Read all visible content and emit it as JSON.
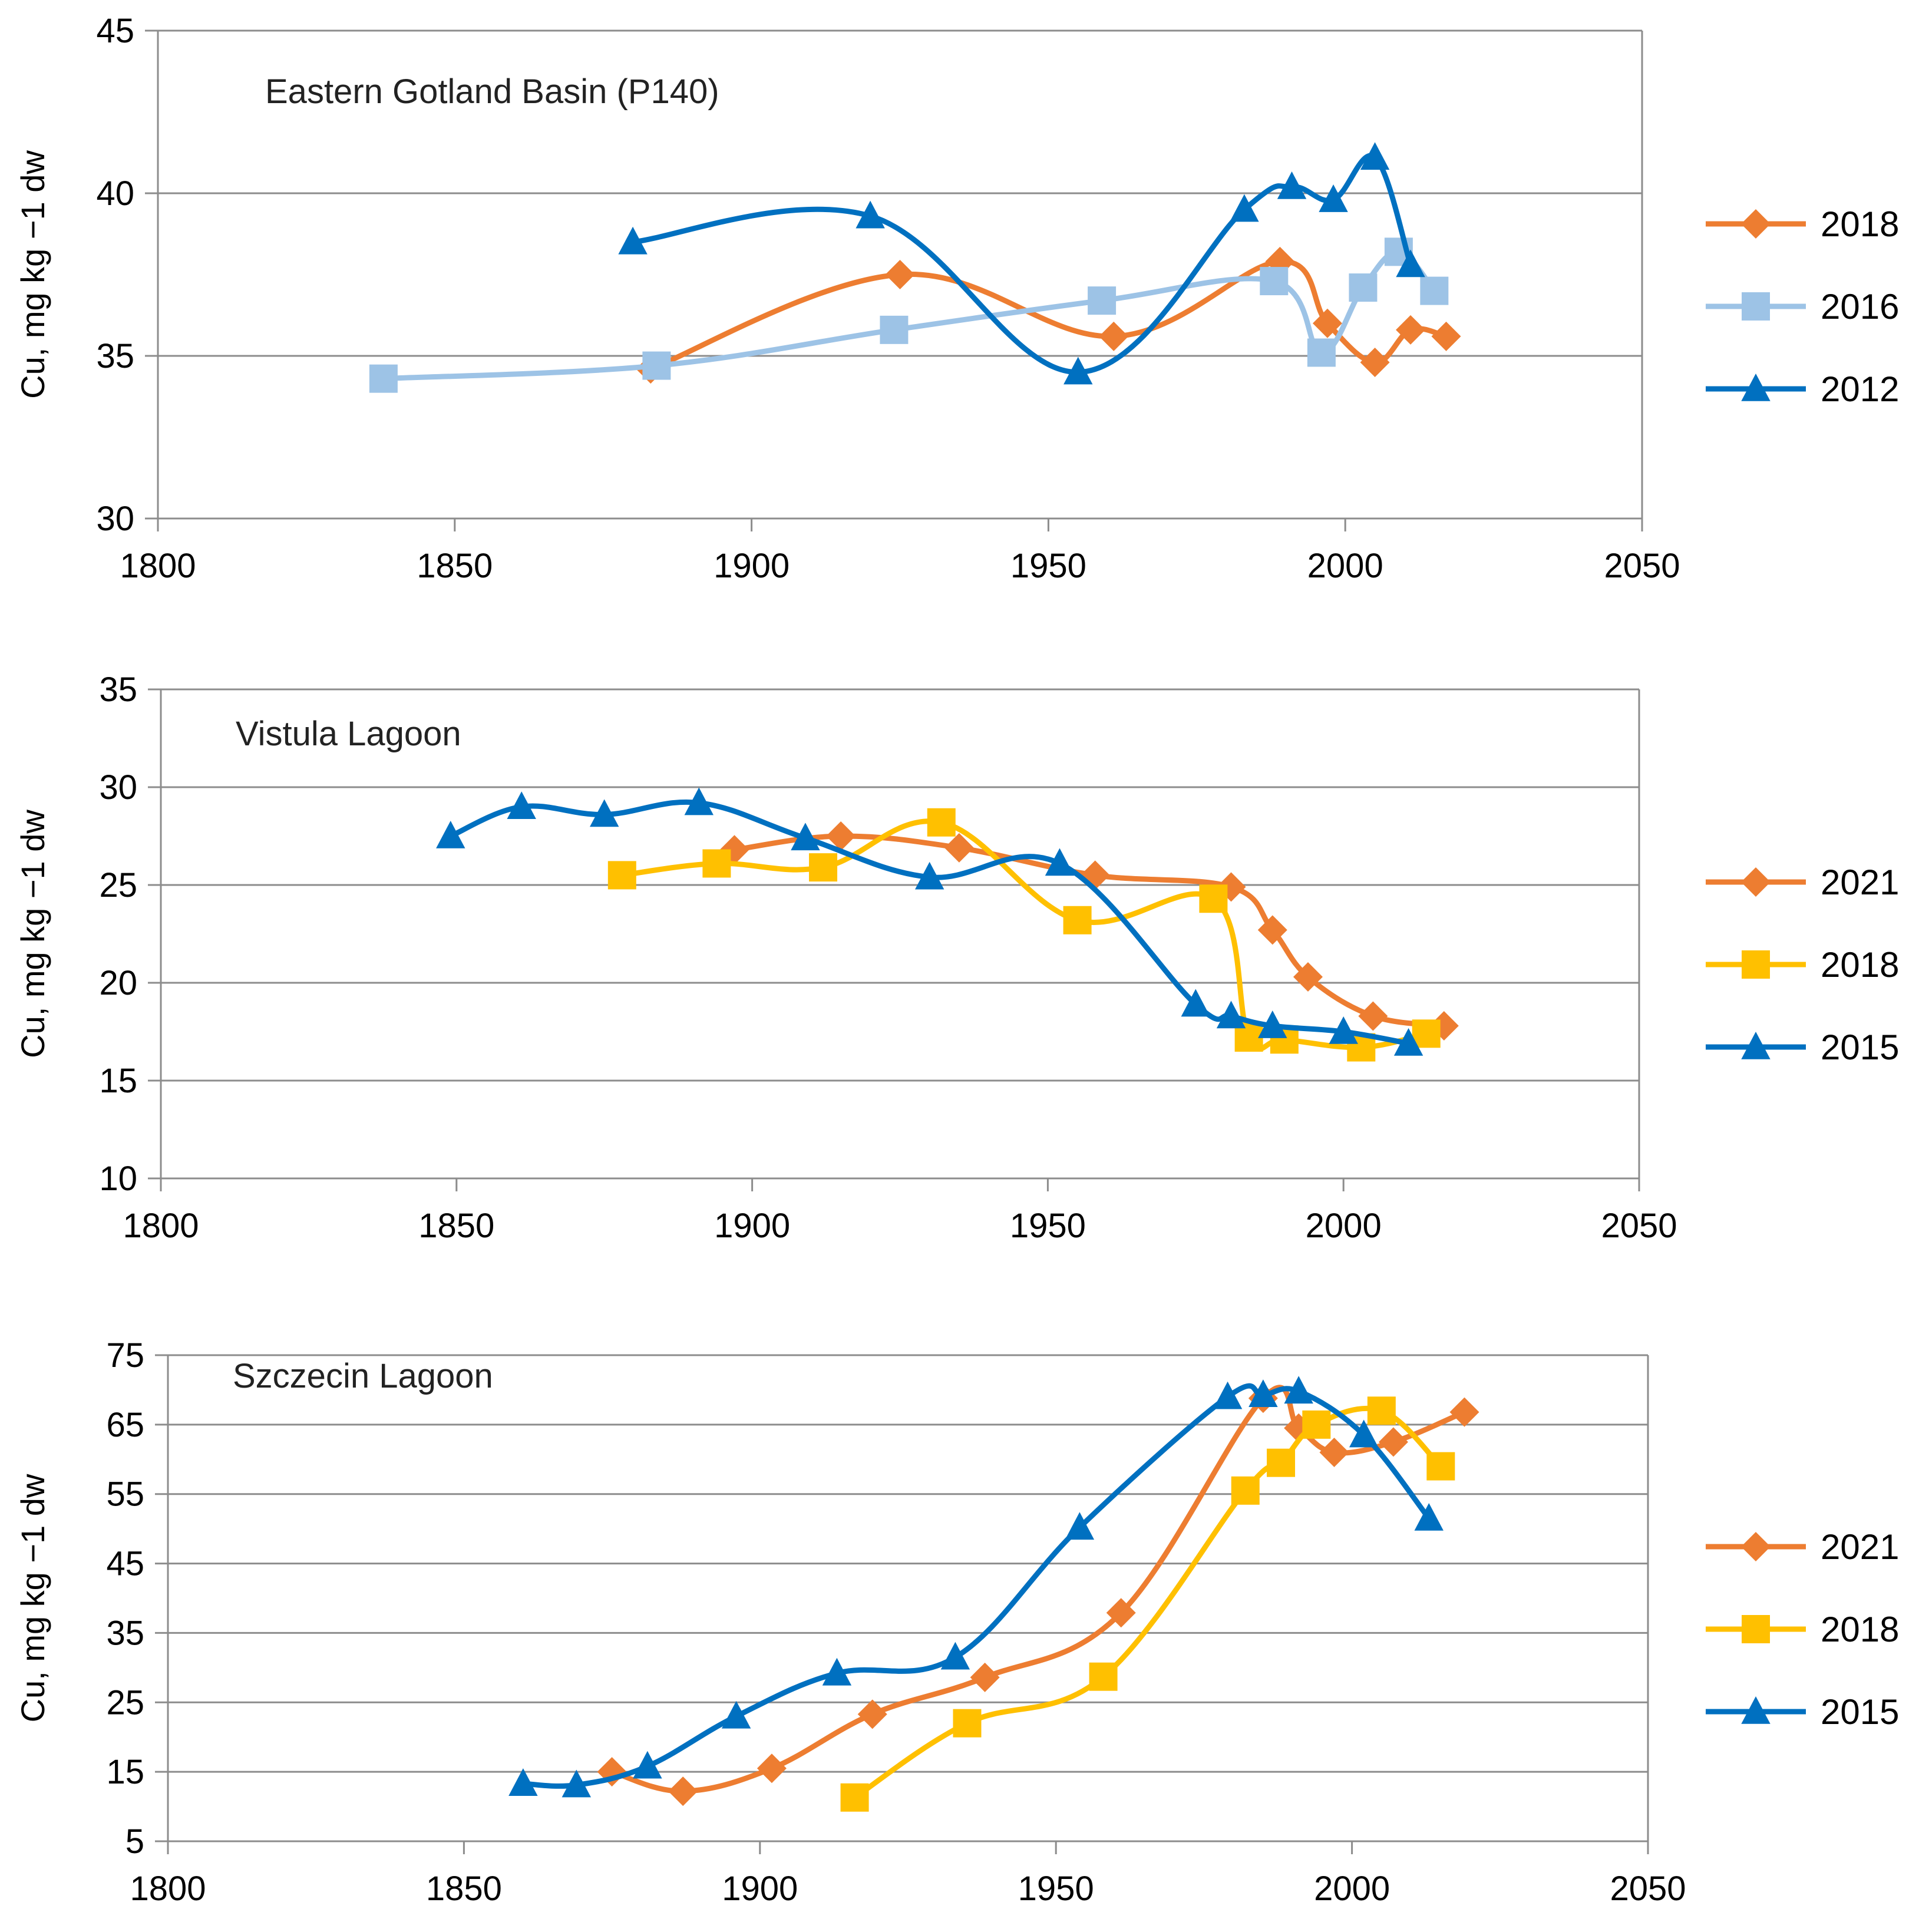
{
  "colors": {
    "orange": "#ED7D31",
    "yellow": "#FFC000",
    "lightblue": "#9DC3E6",
    "blue": "#0070C0",
    "grid": "#8c8c8c",
    "text": "#000000"
  },
  "chart_data": [
    {
      "type": "line",
      "title": "Eastern Gotland Basin (P140)",
      "ylabel": "Cu, mg kg −1 dw",
      "xlim": [
        1800,
        2050
      ],
      "ylim": [
        30,
        45
      ],
      "xticks": [
        "1800",
        "1850",
        "1900",
        "1950",
        "2000",
        "2050"
      ],
      "yticks": [
        "30",
        "35",
        "40",
        "45"
      ],
      "series": [
        {
          "name": "2018",
          "color": "orange",
          "marker": "diamond",
          "x": [
            1883,
            1925,
            1961,
            1989,
            1997,
            2005,
            2011,
            2017
          ],
          "y": [
            34.6,
            37.5,
            35.6,
            37.9,
            36.0,
            34.8,
            35.8,
            35.6
          ]
        },
        {
          "name": "2016",
          "color": "lightblue",
          "marker": "square",
          "x": [
            1838,
            1884,
            1924,
            1959,
            1988,
            1996,
            2003,
            2009,
            2015
          ],
          "y": [
            34.3,
            34.7,
            35.8,
            36.7,
            37.3,
            35.1,
            37.1,
            38.2,
            37.0
          ]
        },
        {
          "name": "2012",
          "color": "blue",
          "marker": "triangle",
          "x": [
            1880,
            1920,
            1955,
            1983,
            1991,
            1998,
            2005,
            2011
          ],
          "y": [
            38.5,
            39.3,
            34.5,
            39.5,
            40.2,
            39.8,
            41.1,
            37.8
          ]
        }
      ]
    },
    {
      "type": "line",
      "title": "Vistula Lagoon",
      "ylabel": "Cu, mg kg −1 dw",
      "xlim": [
        1800,
        2050
      ],
      "ylim": [
        10,
        35
      ],
      "xticks": [
        "1800",
        "1850",
        "1900",
        "1950",
        "2000",
        "2050"
      ],
      "yticks": [
        "10",
        "15",
        "20",
        "25",
        "30",
        "35"
      ],
      "series": [
        {
          "name": "2021",
          "color": "orange",
          "marker": "diamond",
          "x": [
            1897,
            1915,
            1935,
            1958,
            1981,
            1988,
            1994,
            2005,
            2017
          ],
          "y": [
            26.8,
            27.5,
            26.9,
            25.5,
            24.9,
            22.7,
            20.3,
            18.3,
            17.8
          ]
        },
        {
          "name": "2018",
          "color": "yellow",
          "marker": "square",
          "x": [
            1878,
            1894,
            1912,
            1932,
            1955,
            1978,
            1984,
            1990,
            2003,
            2014
          ],
          "y": [
            25.5,
            26.1,
            25.9,
            28.2,
            23.2,
            24.3,
            17.2,
            17.1,
            16.7,
            17.4
          ]
        },
        {
          "name": "2015",
          "color": "blue",
          "marker": "triangle",
          "x": [
            1849,
            1861,
            1875,
            1891,
            1909,
            1930,
            1952,
            1975,
            1981,
            1988,
            2000,
            2011
          ],
          "y": [
            27.5,
            29.0,
            28.6,
            29.2,
            27.4,
            25.4,
            26.1,
            18.9,
            18.3,
            17.8,
            17.5,
            16.9
          ]
        }
      ]
    },
    {
      "type": "line",
      "title": "Szczecin Lagoon",
      "ylabel": "Cu, mg kg −1 dw",
      "xlim": [
        1800,
        2050
      ],
      "ylim": [
        5,
        75
      ],
      "xticks": [
        "1800",
        "1850",
        "1900",
        "1950",
        "2000",
        "2050"
      ],
      "yticks": [
        "5",
        "15",
        "25",
        "35",
        "45",
        "55",
        "65",
        "75"
      ],
      "series": [
        {
          "name": "2021",
          "color": "orange",
          "marker": "diamond",
          "x": [
            1875,
            1887,
            1902,
            1919,
            1938,
            1961,
            1985,
            1991,
            1997,
            2007,
            2019
          ],
          "y": [
            15.0,
            12.2,
            15.5,
            23.3,
            28.6,
            37.9,
            68.8,
            64.5,
            61.0,
            62.5,
            66.8
          ]
        },
        {
          "name": "2018",
          "color": "yellow",
          "marker": "square",
          "x": [
            1916,
            1935,
            1958,
            1982,
            1988,
            1994,
            2005,
            2015
          ],
          "y": [
            11.3,
            22.0,
            28.7,
            55.5,
            59.5,
            65.0,
            67.0,
            59.0
          ]
        },
        {
          "name": "2015",
          "color": "blue",
          "marker": "triangle",
          "x": [
            1860,
            1869,
            1881,
            1896,
            1913,
            1933,
            1954,
            1979,
            1985,
            1991,
            2002,
            2013
          ],
          "y": [
            13.3,
            13.1,
            15.8,
            23.0,
            29.2,
            31.5,
            50.2,
            69.0,
            69.3,
            69.8,
            63.5,
            51.5
          ]
        }
      ]
    }
  ]
}
